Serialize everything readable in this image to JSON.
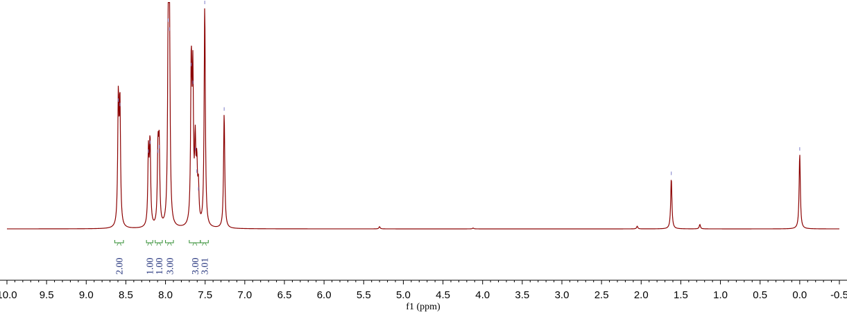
{
  "chart_data": {
    "type": "line",
    "xlabel": "f1 (ppm)",
    "x_reversed": true,
    "xlim": [
      10.0,
      -0.5
    ],
    "x_ticks": [
      {
        "value": 10.0,
        "label": "10.0"
      },
      {
        "value": 9.5,
        "label": "9.5"
      },
      {
        "value": 9.0,
        "label": "9.0"
      },
      {
        "value": 8.5,
        "label": "8.5"
      },
      {
        "value": 8.0,
        "label": "8.0"
      },
      {
        "value": 7.5,
        "label": "7.5"
      },
      {
        "value": 7.0,
        "label": "7.0"
      },
      {
        "value": 6.5,
        "label": "6.5"
      },
      {
        "value": 6.0,
        "label": "6.0"
      },
      {
        "value": 5.5,
        "label": "5.5"
      },
      {
        "value": 5.0,
        "label": "5.0"
      },
      {
        "value": 4.5,
        "label": "4.5"
      },
      {
        "value": 4.0,
        "label": "4.0"
      },
      {
        "value": 3.5,
        "label": "3.5"
      },
      {
        "value": 3.0,
        "label": "3.0"
      },
      {
        "value": 2.5,
        "label": "2.5"
      },
      {
        "value": 2.0,
        "label": "2.0"
      },
      {
        "value": 1.5,
        "label": "1.5"
      },
      {
        "value": 1.0,
        "label": "1.0"
      },
      {
        "value": 0.5,
        "label": "0.5"
      },
      {
        "value": 0.0,
        "label": "0.0"
      },
      {
        "value": -0.5,
        "label": "-0.5"
      }
    ],
    "ylim": [
      0,
      1.0
    ],
    "peaks": [
      {
        "ppm": 8.595,
        "height": 0.56
      },
      {
        "ppm": 8.575,
        "height": 0.54
      },
      {
        "ppm": 8.215,
        "height": 0.33
      },
      {
        "ppm": 8.195,
        "height": 0.37
      },
      {
        "ppm": 8.095,
        "height": 0.33
      },
      {
        "ppm": 8.08,
        "height": 0.35
      },
      {
        "ppm": 7.965,
        "height": 0.92
      },
      {
        "ppm": 7.95,
        "height": 0.88
      },
      {
        "ppm": 7.675,
        "height": 0.72
      },
      {
        "ppm": 7.655,
        "height": 0.64
      },
      {
        "ppm": 7.625,
        "height": 0.34
      },
      {
        "ppm": 7.605,
        "height": 0.24
      },
      {
        "ppm": 7.585,
        "height": 0.16
      },
      {
        "ppm": 7.505,
        "height": 1.0
      },
      {
        "ppm": 7.26,
        "height": 0.52
      },
      {
        "ppm": 5.3,
        "height": 0.01
      },
      {
        "ppm": 4.12,
        "height": 0.004
      },
      {
        "ppm": 2.05,
        "height": 0.012
      },
      {
        "ppm": 1.62,
        "height": 0.23
      },
      {
        "ppm": 1.26,
        "height": 0.02
      },
      {
        "ppm": 0.0,
        "height": 0.34
      }
    ],
    "integrals": [
      {
        "label": "2.00",
        "from": 8.64,
        "to": 8.53
      },
      {
        "label": "1.00",
        "from": 8.24,
        "to": 8.16
      },
      {
        "label": "1.00",
        "from": 8.13,
        "to": 8.04
      },
      {
        "label": "3.00",
        "from": 8.0,
        "to": 7.9
      },
      {
        "label": "3.00",
        "from": 7.7,
        "to": 7.56
      },
      {
        "label": "3.01",
        "from": 7.56,
        "to": 7.46
      }
    ],
    "colors": {
      "spectrum": "#8b0000",
      "peak_marker": "#7b7bc8",
      "integral": "#2e8b2e",
      "integral_label": "#1f2f7a",
      "axis": "#000000"
    }
  }
}
